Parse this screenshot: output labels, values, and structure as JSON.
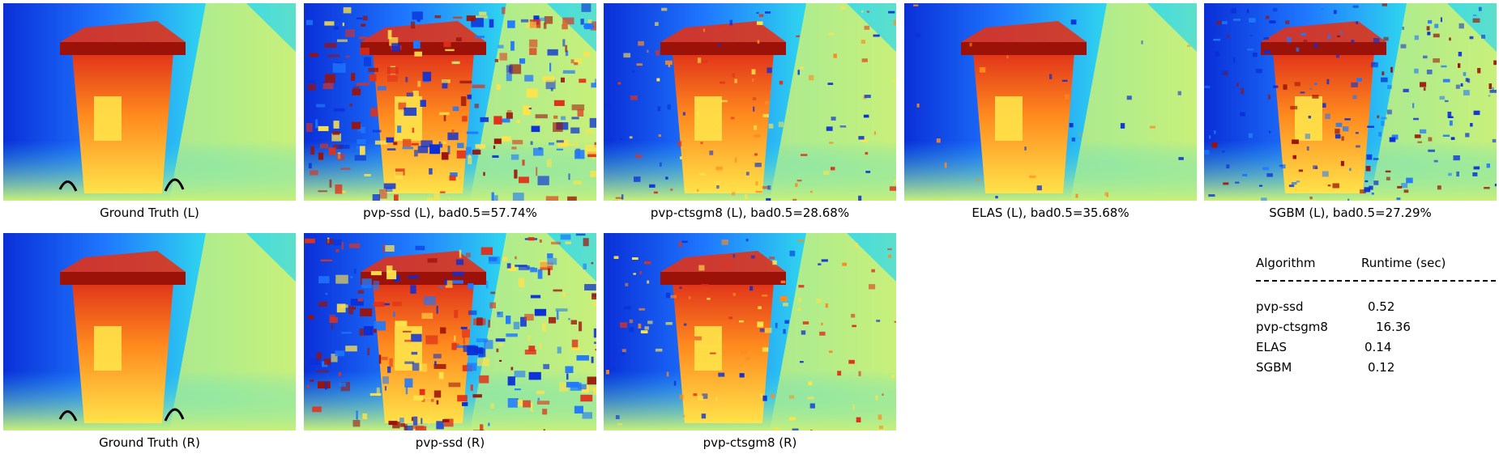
{
  "colors": {
    "deep_blue": "#0a2fd8",
    "blue": "#1f78ff",
    "cyan": "#2fd8ee",
    "yellow_green": "#c8f07a",
    "yellow": "#ffe34a",
    "orange": "#ff8a1e",
    "red": "#e0321a",
    "dark_red": "#9c1208"
  },
  "panels": [
    {
      "id": "gt-left",
      "caption": "Ground Truth (L)",
      "noise": "clean"
    },
    {
      "id": "pvp-ssd-left",
      "caption": "pvp-ssd (L), bad0.5=57.74%",
      "noise": "heavy"
    },
    {
      "id": "pvp-ctsgm8-left",
      "caption": "pvp-ctsgm8 (L), bad0.5=28.68%",
      "noise": "medium"
    },
    {
      "id": "elas-left",
      "caption": "ELAS (L), bad0.5=35.68%",
      "noise": "smooth"
    },
    {
      "id": "sgbm-left",
      "caption": "SGBM (L), bad0.5=27.29%",
      "noise": "speckle"
    },
    {
      "id": "gt-right",
      "caption": "Ground Truth (R)",
      "noise": "clean"
    },
    {
      "id": "pvp-ssd-right",
      "caption": "pvp-ssd (R)",
      "noise": "heavy"
    },
    {
      "id": "pvp-ctsgm8-right",
      "caption": "pvp-ctsgm8 (R)",
      "noise": "medium"
    }
  ],
  "runtime_table": {
    "header_algorithm": "Algorithm",
    "header_runtime": "Runtime (sec)",
    "rows": [
      {
        "algorithm": "pvp-ssd",
        "runtime": "0.52"
      },
      {
        "algorithm": "pvp-ctsgm8",
        "runtime": "16.36"
      },
      {
        "algorithm": "ELAS",
        "runtime": "0.14"
      },
      {
        "algorithm": "SGBM",
        "runtime": "0.12"
      }
    ]
  }
}
